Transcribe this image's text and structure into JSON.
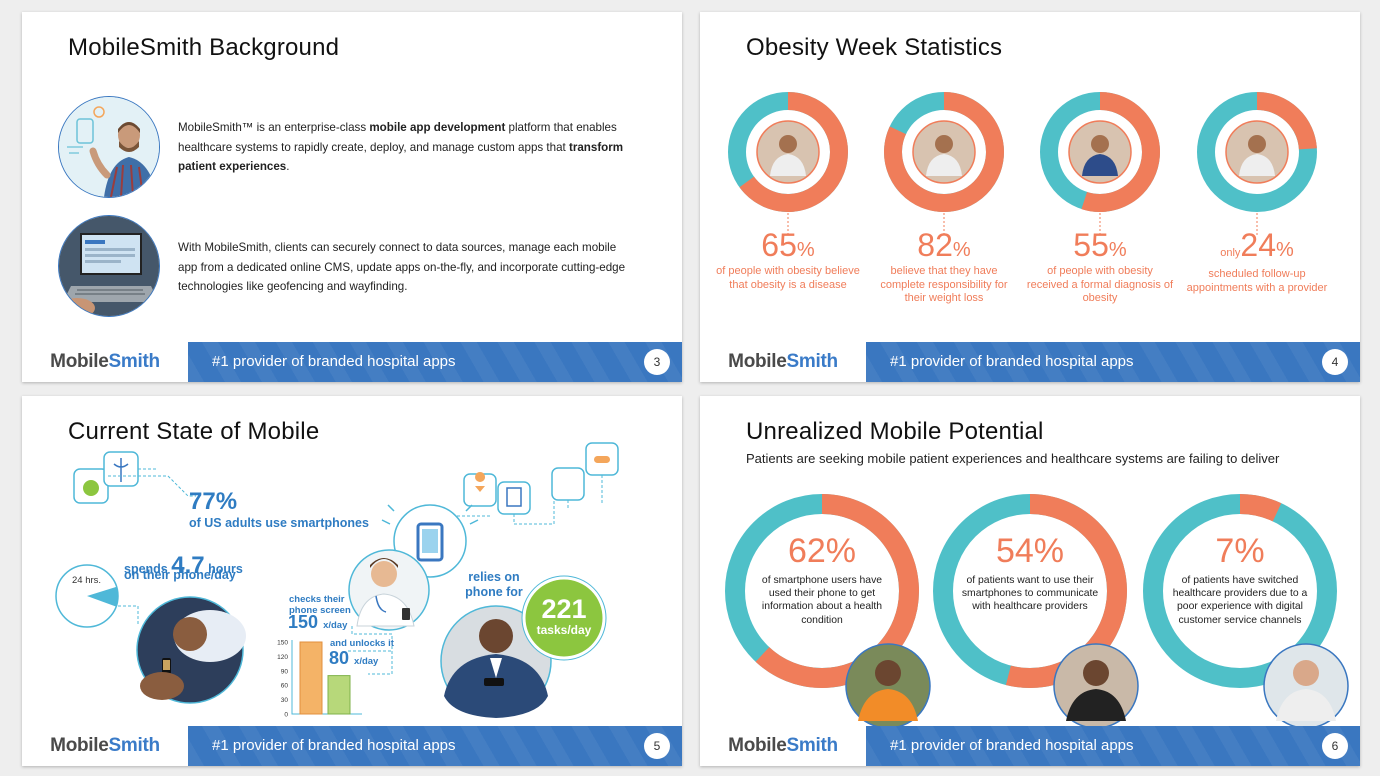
{
  "brand": {
    "logo_mobile": "Mobile",
    "logo_smith": "Smith",
    "tagline": "#1 provider of branded hospital apps"
  },
  "colors": {
    "blue": "#3a77c0",
    "orange": "#f07d5a",
    "teal": "#4fc0c8",
    "green": "#8cc63f"
  },
  "slide1": {
    "title": "MobileSmith Background",
    "page": "3",
    "p1_a": "MobileSmith™ is an enterprise-class ",
    "p1_b": "mobile app development",
    "p1_c": " platform that enables healthcare systems to rapidly create, deploy, and manage custom apps that ",
    "p1_d": "transform patient experiences",
    "p1_e": ".",
    "p2": "With MobileSmith, clients can securely connect to data sources, manage each mobile app from a dedicated online CMS, update apps on-the-fly, and incorporate cutting-edge technologies like geofencing and wayfinding."
  },
  "slide2": {
    "title": "Obesity Week Statistics",
    "page": "4",
    "stats": [
      {
        "prefix": "",
        "value": "65",
        "pct": "%",
        "desc": "of people with obesity believe that obesity is a disease",
        "fraction": 0.65
      },
      {
        "prefix": "",
        "value": "82",
        "pct": "%",
        "desc": "believe that they have complete responsibility for their weight loss",
        "fraction": 0.82
      },
      {
        "prefix": "",
        "value": "55",
        "pct": "%",
        "desc": "of people with obesity received a formal diagnosis of obesity",
        "fraction": 0.55
      },
      {
        "prefix": "only",
        "value": "24",
        "pct": "%",
        "desc": "scheduled follow-up appointments with a provider",
        "fraction": 0.24
      }
    ]
  },
  "slide3": {
    "title": "Current State of Mobile",
    "page": "5",
    "pct77": "77%",
    "adults": "of US adults use smartphones",
    "spends": "spends",
    "hours_val": "4.7",
    "hours": "hours",
    "on_phone": "on their phone/day",
    "hrs24": "24 hrs.",
    "hours_fraction": 0.196,
    "checks": "checks their",
    "screen": "phone screen",
    "v150": "150",
    "perday": "x/day",
    "unlocks": "and unlocks it",
    "v80": "80",
    "relies": "relies on",
    "phonefor": "phone for",
    "tasks_val": "221",
    "tasks": "tasks/day",
    "bar_chart": {
      "ticks": [
        "150",
        "120",
        "90",
        "60",
        "30",
        "0"
      ],
      "values": [
        150,
        80
      ],
      "max": 150
    }
  },
  "slide4": {
    "title": "Unrealized Mobile Potential",
    "page": "6",
    "subtitle": "Patients are seeking mobile patient experiences and healthcare systems are failing to deliver",
    "stats": [
      {
        "value": "62%",
        "desc": "of smartphone users have used their phone to get information about a health condition",
        "fraction": 0.62
      },
      {
        "value": "54%",
        "desc": "of patients want to use their smartphones to communicate with healthcare providers",
        "fraction": 0.54
      },
      {
        "value": "7%",
        "desc": "of patients have switched healthcare providers due to a poor experience with digital customer service channels",
        "fraction": 0.07
      }
    ]
  }
}
